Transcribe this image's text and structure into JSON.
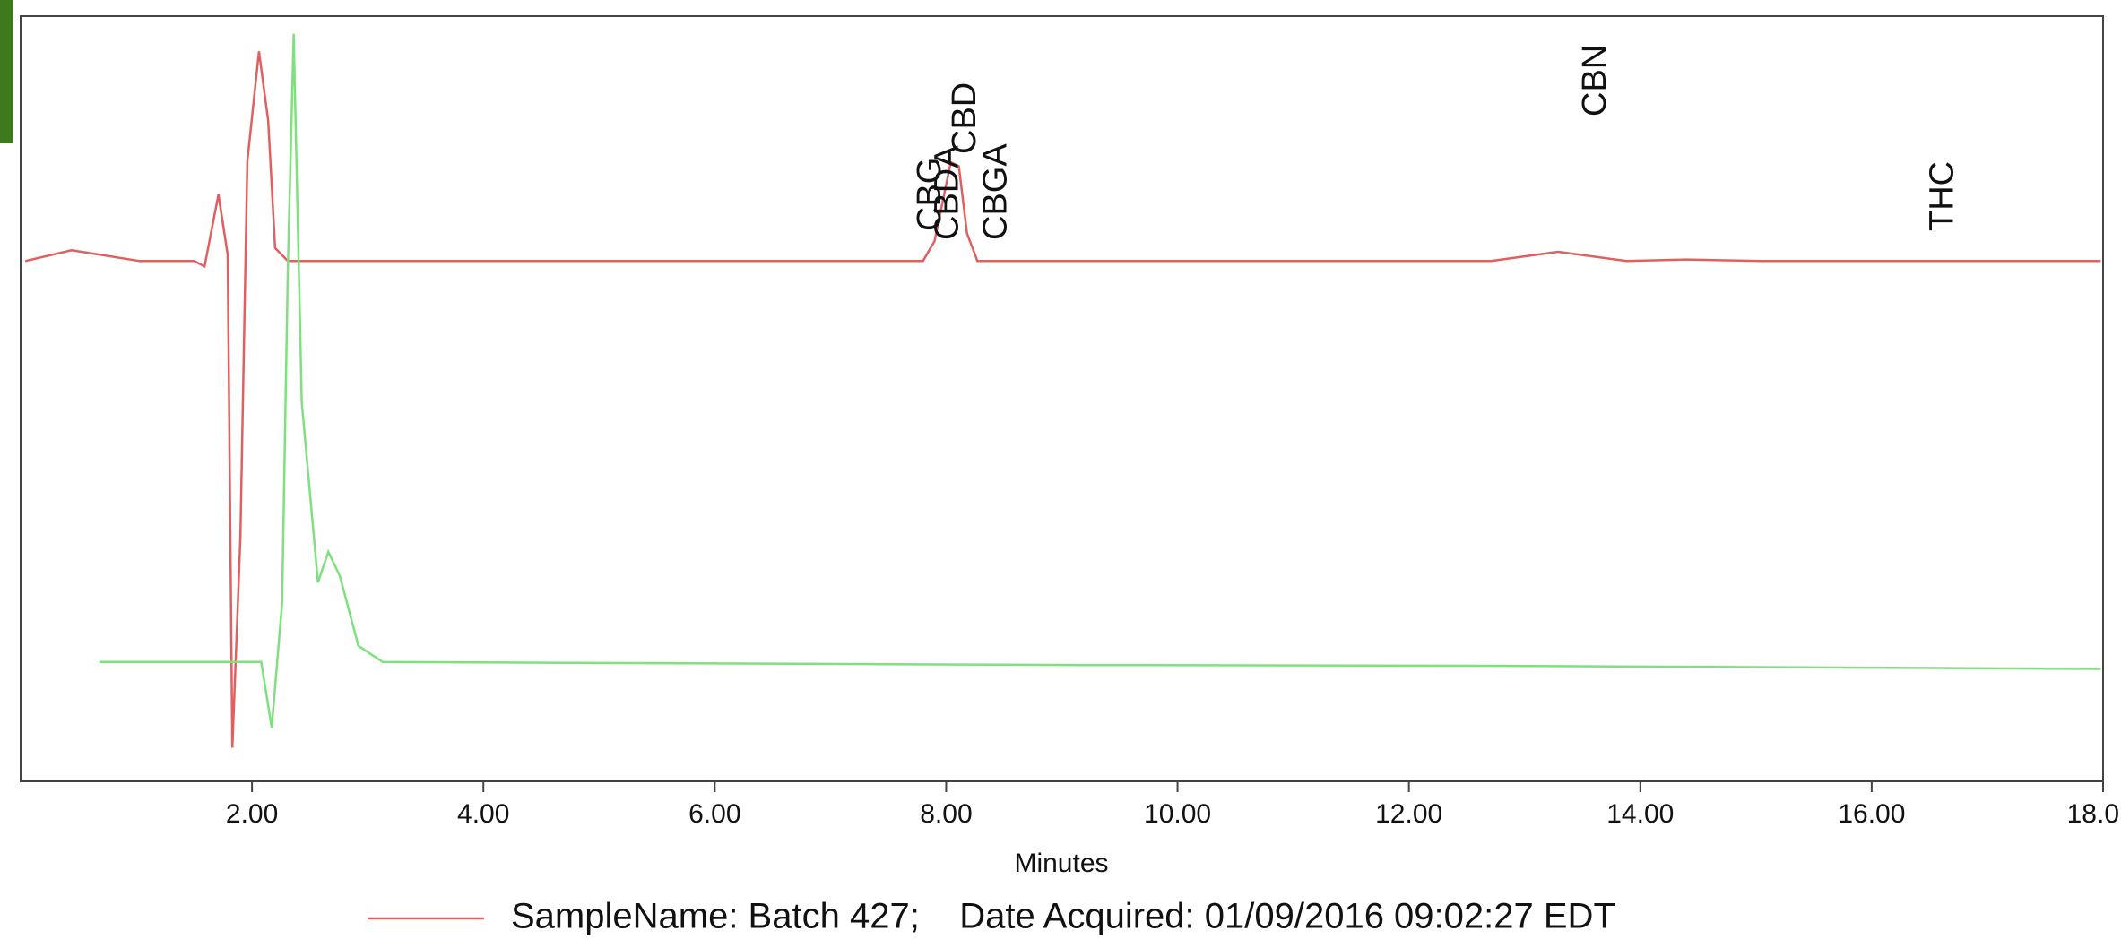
{
  "chart_data": {
    "type": "line",
    "x_label": "Minutes",
    "xlim": [
      0,
      18
    ],
    "ylim": [
      0,
      100
    ],
    "xticks": [
      {
        "value": 2,
        "label": "2.00"
      },
      {
        "value": 4,
        "label": "4.00"
      },
      {
        "value": 6,
        "label": "6.00"
      },
      {
        "value": 8,
        "label": "8.00"
      },
      {
        "value": 10,
        "label": "10.00"
      },
      {
        "value": 12,
        "label": "12.00"
      },
      {
        "value": 14,
        "label": "14.00"
      },
      {
        "value": 16,
        "label": "16.00"
      },
      {
        "value": 18,
        "label": "18.0"
      }
    ],
    "series": [
      {
        "name": "SampleName: Batch 427;    Date Acquired: 01/09/2016 09:02:27 EDT",
        "color": "#e06060",
        "x": [
          0.04,
          0.44,
          1.03,
          1.5,
          1.59,
          1.71,
          1.79,
          1.83,
          1.9,
          1.96,
          2.06,
          2.14,
          2.2,
          2.31,
          5.12,
          7.8,
          7.9,
          8.04,
          8.11,
          8.18,
          8.27,
          12.71,
          13.29,
          13.88,
          14.4,
          15.05,
          17.98
        ],
        "values": [
          68,
          69.4,
          68,
          68,
          67.3,
          76.7,
          68.8,
          4.4,
          32,
          81,
          95.4,
          86.3,
          69.7,
          68,
          68,
          68,
          70.6,
          80.9,
          80.4,
          71.6,
          68,
          68,
          69.2,
          68,
          68.2,
          68,
          68
        ]
      },
      {
        "color": "#7ee07e",
        "x": [
          0.68,
          2.08,
          2.17,
          2.26,
          2.31,
          2.36,
          2.43,
          2.57,
          2.66,
          2.76,
          2.92,
          3.13,
          9.21,
          12.71,
          17.98
        ],
        "values": [
          15.6,
          15.6,
          7,
          23.3,
          67,
          97.7,
          49.6,
          26,
          30,
          26.8,
          17.7,
          15.6,
          15.2,
          15.1,
          14.7
        ]
      }
    ],
    "annotations": [
      {
        "text": "CBG",
        "x": 7.85
      },
      {
        "text": "CBDA",
        "x": 8.0
      },
      {
        "text": "CBD",
        "x": 8.15
      },
      {
        "text": "CBGA",
        "x": 8.42
      },
      {
        "text": "CBN",
        "x": 13.6
      },
      {
        "text": "THC",
        "x": 16.6
      }
    ]
  }
}
